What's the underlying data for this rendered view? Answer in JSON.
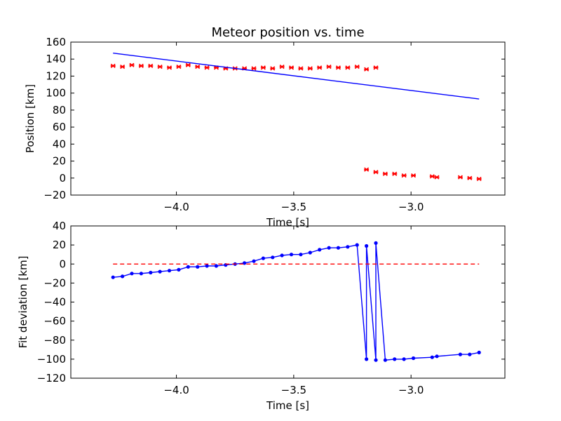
{
  "chart_data": [
    {
      "type": "scatter",
      "title": "Meteor position vs. time",
      "xlabel": "Time [s]",
      "ylabel": "Position [km]",
      "xlim": [
        -4.45,
        -2.6
      ],
      "ylim": [
        -20,
        160
      ],
      "xticks": [
        -4.0,
        -3.5,
        -3.0
      ],
      "xtick_labels": [
        "−4.0",
        "−3.5",
        "−3.0"
      ],
      "yticks": [
        -20,
        0,
        20,
        40,
        60,
        80,
        100,
        120,
        140,
        160
      ],
      "ytick_labels": [
        "−20",
        "0",
        "20",
        "40",
        "60",
        "80",
        "100",
        "120",
        "140",
        "160"
      ],
      "grid": false,
      "series": [
        {
          "style": "markers",
          "color": "#ff0000",
          "marker": "x",
          "x": [
            -4.27,
            -4.23,
            -4.19,
            -4.15,
            -4.11,
            -4.07,
            -4.03,
            -3.99,
            -3.95,
            -3.91,
            -3.87,
            -3.83,
            -3.79,
            -3.75,
            -3.71,
            -3.67,
            -3.63,
            -3.59,
            -3.55,
            -3.51,
            -3.47,
            -3.43,
            -3.39,
            -3.35,
            -3.31,
            -3.27,
            -3.23,
            -3.19,
            -3.15,
            -3.19,
            -3.15,
            -3.11,
            -3.07,
            -3.03,
            -2.99,
            -2.91,
            -2.89,
            -2.79,
            -2.75,
            -2.71
          ],
          "y": [
            132,
            131,
            133,
            132,
            132,
            131,
            130,
            131,
            133,
            131,
            130,
            130,
            129,
            129,
            129,
            129,
            130,
            129,
            131,
            130,
            129,
            129,
            130,
            131,
            130,
            130,
            131,
            128,
            130,
            10,
            7,
            5,
            5,
            3,
            3,
            2,
            1,
            1,
            0,
            -1
          ]
        },
        {
          "style": "line",
          "color": "#0000ff",
          "x": [
            -4.27,
            -2.71
          ],
          "y": [
            147,
            93
          ]
        }
      ]
    },
    {
      "type": "line",
      "title": "",
      "xlabel": "Time [s]",
      "ylabel": "Fit deviation [km]",
      "xlim": [
        -4.45,
        -2.6
      ],
      "ylim": [
        -120,
        40
      ],
      "xticks": [
        -4.0,
        -3.5,
        -3.0
      ],
      "xtick_labels": [
        "−4.0",
        "−3.5",
        "−3.0"
      ],
      "yticks": [
        -120,
        -100,
        -80,
        -60,
        -40,
        -20,
        0,
        20,
        40
      ],
      "ytick_labels": [
        "−120",
        "−100",
        "−80",
        "−60",
        "−40",
        "−20",
        "0",
        "20",
        "40"
      ],
      "grid": false,
      "series": [
        {
          "style": "line-markers",
          "color": "#0000ff",
          "marker": "circle",
          "x": [
            -4.27,
            -4.23,
            -4.19,
            -4.15,
            -4.11,
            -4.07,
            -4.03,
            -3.99,
            -3.95,
            -3.91,
            -3.87,
            -3.83,
            -3.79,
            -3.75,
            -3.71,
            -3.67,
            -3.63,
            -3.59,
            -3.55,
            -3.51,
            -3.47,
            -3.43,
            -3.39,
            -3.35,
            -3.31,
            -3.27,
            -3.23,
            -3.19,
            -3.19,
            -3.15,
            -3.15,
            -3.11,
            -3.07,
            -3.03,
            -2.99,
            -2.91,
            -2.89,
            -2.79,
            -2.75,
            -2.71
          ],
          "y": [
            -14,
            -13,
            -10,
            -10,
            -9,
            -8,
            -7,
            -6,
            -3,
            -3,
            -2,
            -2,
            -1,
            0,
            1,
            3,
            6,
            7,
            9,
            10,
            10,
            12,
            15,
            17,
            17,
            18,
            20,
            -100,
            19,
            -101,
            22,
            -101,
            -100,
            -100,
            -99,
            -98,
            -97,
            -95,
            -95,
            -93
          ]
        },
        {
          "style": "dashed-line",
          "color": "#ff0000",
          "x": [
            -4.27,
            -2.71
          ],
          "y": [
            0,
            0
          ]
        }
      ]
    }
  ]
}
